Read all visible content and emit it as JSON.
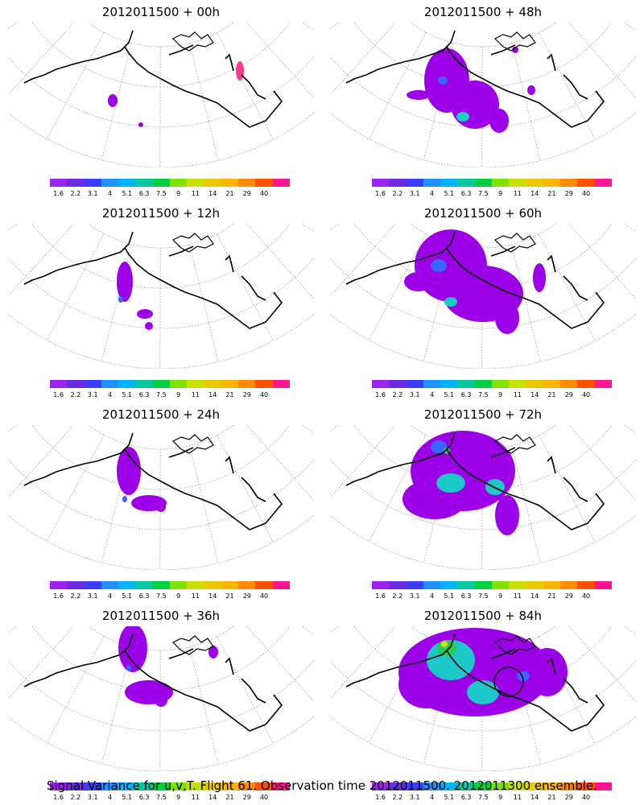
{
  "panels": [
    {
      "title": "2012011500 + 00h",
      "blobs": [
        [
          "p",
          140,
          125,
          6,
          8
        ],
        [
          "p",
          175,
          155,
          3,
          3
        ],
        [
          "m",
          298,
          88,
          5,
          12
        ]
      ],
      "circle": false
    },
    {
      "title": "2012011500 + 48h",
      "blobs": [
        [
          "p",
          555,
          100,
          28,
          40
        ],
        [
          "p",
          590,
          130,
          30,
          30
        ],
        [
          "p",
          620,
          150,
          12,
          15
        ],
        [
          "p",
          520,
          118,
          15,
          6
        ],
        [
          "p",
          660,
          112,
          5,
          6
        ],
        [
          "p",
          640,
          62,
          4,
          4
        ],
        [
          "c",
          575,
          145,
          8,
          6
        ],
        [
          "b",
          550,
          100,
          6,
          5
        ]
      ],
      "circle": false
    },
    {
      "title": "2012011500 + 12h",
      "blobs": [
        [
          "p",
          155,
          350,
          10,
          25
        ],
        [
          "p",
          180,
          390,
          10,
          6
        ],
        [
          "p",
          185,
          405,
          5,
          5
        ],
        [
          "b",
          150,
          372,
          3,
          4
        ]
      ],
      "circle": false
    },
    {
      "title": "2012011500 + 60h",
      "blobs": [
        [
          "p",
          560,
          330,
          45,
          45
        ],
        [
          "p",
          600,
          365,
          50,
          35
        ],
        [
          "p",
          630,
          395,
          15,
          20
        ],
        [
          "p",
          520,
          350,
          18,
          12
        ],
        [
          "p",
          670,
          345,
          8,
          18
        ],
        [
          "b",
          545,
          330,
          10,
          8
        ],
        [
          "c",
          560,
          375,
          8,
          6
        ]
      ],
      "circle": false
    },
    {
      "title": "2012011500 + 24h",
      "blobs": [
        [
          "p",
          160,
          585,
          15,
          30
        ],
        [
          "p",
          185,
          625,
          22,
          10
        ],
        [
          "p",
          200,
          630,
          6,
          6
        ],
        [
          "b",
          155,
          620,
          3,
          4
        ]
      ],
      "circle": false
    },
    {
      "title": "2012011500 + 72h",
      "blobs": [
        [
          "p",
          575,
          585,
          65,
          50
        ],
        [
          "p",
          540,
          620,
          40,
          25
        ],
        [
          "p",
          630,
          640,
          15,
          25
        ],
        [
          "c",
          560,
          600,
          18,
          12
        ],
        [
          "c",
          615,
          605,
          12,
          10
        ],
        [
          "b",
          545,
          555,
          10,
          8
        ],
        [
          "g",
          555,
          560,
          4,
          4
        ]
      ],
      "circle": false
    },
    {
      "title": "2012011500 + 36h",
      "blobs": [
        [
          "p",
          165,
          805,
          18,
          30
        ],
        [
          "p",
          185,
          860,
          30,
          15
        ],
        [
          "p",
          200,
          870,
          8,
          8
        ],
        [
          "p",
          265,
          810,
          6,
          8
        ],
        [
          "b",
          160,
          830,
          3,
          4
        ]
      ],
      "circle": false
    },
    {
      "title": "2012011500 + 84h",
      "blobs": [
        [
          "p",
          590,
          835,
          95,
          55
        ],
        [
          "p",
          530,
          850,
          35,
          30
        ],
        [
          "p",
          680,
          835,
          25,
          30
        ],
        [
          "c",
          560,
          820,
          30,
          25
        ],
        [
          "c",
          600,
          860,
          20,
          15
        ],
        [
          "g",
          555,
          805,
          12,
          10
        ],
        [
          "y",
          552,
          800,
          4,
          4
        ],
        [
          "b",
          650,
          840,
          8,
          6
        ]
      ],
      "circle": true
    }
  ],
  "colorbar": {
    "colors": [
      "#a020f0",
      "#6a2ce0",
      "#3c3cff",
      "#1e90ff",
      "#00b4ff",
      "#00c8a0",
      "#00d040",
      "#80e000",
      "#c8e000",
      "#e8c800",
      "#ffb400",
      "#ff8c00",
      "#ff5000",
      "#ff1493"
    ],
    "ticks": [
      "1.6",
      "2.2",
      "3.1",
      "4",
      "5.1",
      "6.3",
      "7.5",
      "9",
      "11",
      "14",
      "21",
      "29",
      "40"
    ]
  },
  "footer": "Signal Variance for u,v,T. Flight 61. Observation time 2012011500. 2012011300 ensemble."
}
